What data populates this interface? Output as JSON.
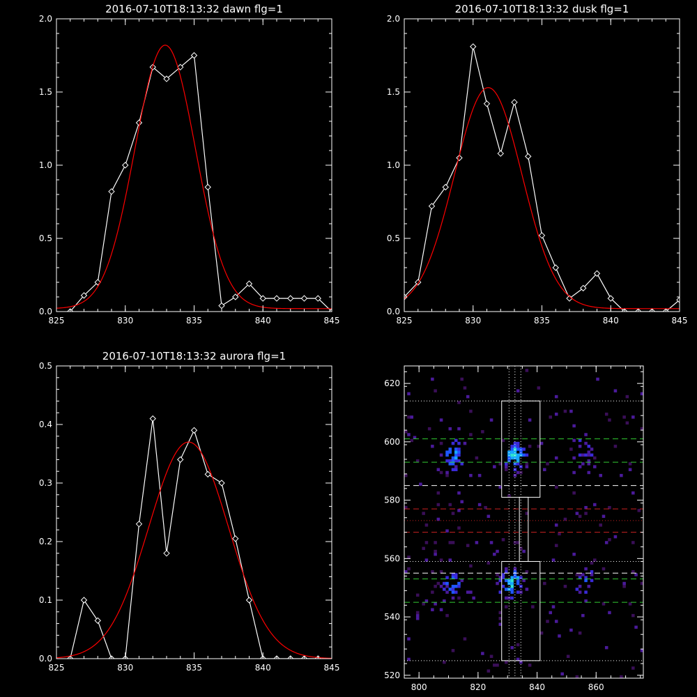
{
  "chart_data": [
    {
      "type": "line",
      "title": "2016-07-10T18:13:32 dawn flg=1",
      "xlim": [
        825,
        845
      ],
      "ylim": [
        0,
        2
      ],
      "xticks": [
        825,
        830,
        835,
        840,
        845
      ],
      "yticks": [
        0,
        0.5,
        1,
        1.5,
        2
      ],
      "xtick_labels": [
        "825",
        "830",
        "835",
        "840",
        "845"
      ],
      "ytick_labels": [
        "0.0",
        "0.5",
        "1.0",
        "1.5",
        "2.0"
      ],
      "series": [
        {
          "color": "#ffffff",
          "marker": "diamond",
          "x": [
            826,
            827,
            828,
            829,
            830,
            831,
            832,
            833,
            834,
            835,
            836,
            837,
            838,
            839,
            840,
            841,
            842,
            843,
            844,
            845
          ],
          "y": [
            0.0,
            0.11,
            0.2,
            0.82,
            1.0,
            1.29,
            1.67,
            1.59,
            1.67,
            1.75,
            0.85,
            0.04,
            0.1,
            0.19,
            0.09,
            0.09,
            0.09,
            0.09,
            0.09,
            0.0
          ]
        },
        {
          "color": "#ff0000",
          "fit": "gaussian",
          "amplitude": 1.8,
          "center": 832.9,
          "sigma": 2.2,
          "baseline": 0.02
        }
      ]
    },
    {
      "type": "line",
      "title": "2016-07-10T18:13:32 dusk flg=1",
      "xlim": [
        825,
        845
      ],
      "ylim": [
        0,
        2
      ],
      "xticks": [
        825,
        830,
        835,
        840,
        845
      ],
      "yticks": [
        0,
        0.5,
        1,
        1.5,
        2
      ],
      "xtick_labels": [
        "825",
        "830",
        "835",
        "840",
        "845"
      ],
      "ytick_labels": [
        "0.0",
        "0.5",
        "1.0",
        "1.5",
        "2.0"
      ],
      "series": [
        {
          "color": "#ffffff",
          "marker": "diamond",
          "x": [
            825,
            826,
            827,
            828,
            829,
            830,
            831,
            832,
            833,
            834,
            835,
            836,
            837,
            838,
            839,
            840,
            841,
            842,
            843,
            844,
            845
          ],
          "y": [
            0.1,
            0.2,
            0.72,
            0.85,
            1.05,
            1.81,
            1.42,
            1.08,
            1.43,
            1.06,
            0.52,
            0.3,
            0.09,
            0.16,
            0.26,
            0.09,
            0.0,
            0.0,
            0.0,
            0.0,
            0.08
          ]
        },
        {
          "color": "#ff0000",
          "fit": "gaussian",
          "amplitude": 1.51,
          "center": 831.1,
          "sigma": 2.45,
          "baseline": 0.02
        }
      ]
    },
    {
      "type": "line",
      "title": "2016-07-10T18:13:32 aurora flg=1",
      "xlim": [
        825,
        845
      ],
      "ylim": [
        0,
        0.5
      ],
      "xticks": [
        825,
        830,
        835,
        840,
        845
      ],
      "yticks": [
        0,
        0.1,
        0.2,
        0.3,
        0.4,
        0.5
      ],
      "xtick_labels": [
        "825",
        "830",
        "835",
        "840",
        "845"
      ],
      "ytick_labels": [
        "0.0",
        "0.1",
        "0.2",
        "0.3",
        "0.4",
        "0.5"
      ],
      "series": [
        {
          "color": "#ffffff",
          "marker": "diamond",
          "x": [
            826,
            827,
            828,
            829,
            830,
            831,
            832,
            833,
            834,
            835,
            836,
            837,
            838,
            839,
            840,
            841,
            842,
            843,
            844
          ],
          "y": [
            0.0,
            0.1,
            0.065,
            0.0,
            0.0,
            0.23,
            0.41,
            0.18,
            0.34,
            0.39,
            0.315,
            0.3,
            0.205,
            0.1,
            0.0,
            0.0,
            0.0,
            0.0,
            0.0
          ]
        },
        {
          "color": "#ff0000",
          "fit": "gaussian",
          "amplitude": 0.37,
          "center": 834.6,
          "sigma": 2.9,
          "baseline": 0.0
        }
      ]
    },
    {
      "type": "heatmap",
      "xlim": [
        795,
        876
      ],
      "ylim": [
        519,
        626
      ],
      "xticks": [
        800,
        820,
        840,
        860
      ],
      "yticks": [
        520,
        540,
        560,
        580,
        600,
        620
      ],
      "xtick_labels": [
        "800",
        "820",
        "840",
        "860"
      ],
      "ytick_labels": [
        "520",
        "540",
        "560",
        "580",
        "600",
        "620"
      ],
      "colormap": [
        "#3a0f58",
        "#4a1a9a",
        "#3a2ad8",
        "#1f57ff",
        "#17a6ff",
        "#30e0d0",
        "#b8ffe8",
        "#ffffff"
      ],
      "clusters": [
        {
          "cx": 811,
          "cy": 595,
          "weight": 4
        },
        {
          "cx": 832,
          "cy": 595,
          "weight": 5
        },
        {
          "cx": 855,
          "cy": 596,
          "weight": 2
        },
        {
          "cx": 811,
          "cy": 551,
          "weight": 3
        },
        {
          "cx": 831,
          "cy": 551,
          "weight": 5
        },
        {
          "cx": 856,
          "cy": 551,
          "weight": 2
        }
      ],
      "boxes": [
        {
          "x0": 828,
          "x1": 841,
          "y0": 581,
          "y1": 614,
          "color": "#ffffff"
        },
        {
          "x0": 834,
          "x1": 837,
          "y0": 559,
          "y1": 581,
          "color": "#ffffff"
        },
        {
          "x0": 828,
          "x1": 841,
          "y0": 525,
          "y1": 559,
          "color": "#ffffff"
        }
      ],
      "hlines": [
        {
          "y": 614,
          "color": "#ffffff",
          "style": "dotted"
        },
        {
          "y": 601,
          "color": "#33cc33",
          "style": "dashed"
        },
        {
          "y": 593,
          "color": "#33cc33",
          "style": "dashed"
        },
        {
          "y": 585,
          "color": "#ffffff",
          "style": "dashed"
        },
        {
          "y": 577,
          "color": "#cc2222",
          "style": "dashed"
        },
        {
          "y": 573,
          "color": "#cc2222",
          "style": "dotted"
        },
        {
          "y": 569,
          "color": "#cc2222",
          "style": "dashed"
        },
        {
          "y": 559,
          "color": "#ffffff",
          "style": "dotted"
        },
        {
          "y": 555,
          "color": "#ffffff",
          "style": "dashed"
        },
        {
          "y": 553,
          "color": "#33cc33",
          "style": "dashed"
        },
        {
          "y": 545,
          "color": "#33cc33",
          "style": "dashed"
        },
        {
          "y": 525,
          "color": "#ffffff",
          "style": "dotted"
        }
      ],
      "vlines": [
        {
          "x": 830.5,
          "color": "#ffffff",
          "style": "dotted"
        },
        {
          "x": 832.5,
          "color": "#ffffff",
          "style": "dotted"
        },
        {
          "x": 834.5,
          "color": "#ffffff",
          "style": "dotted"
        }
      ]
    }
  ]
}
